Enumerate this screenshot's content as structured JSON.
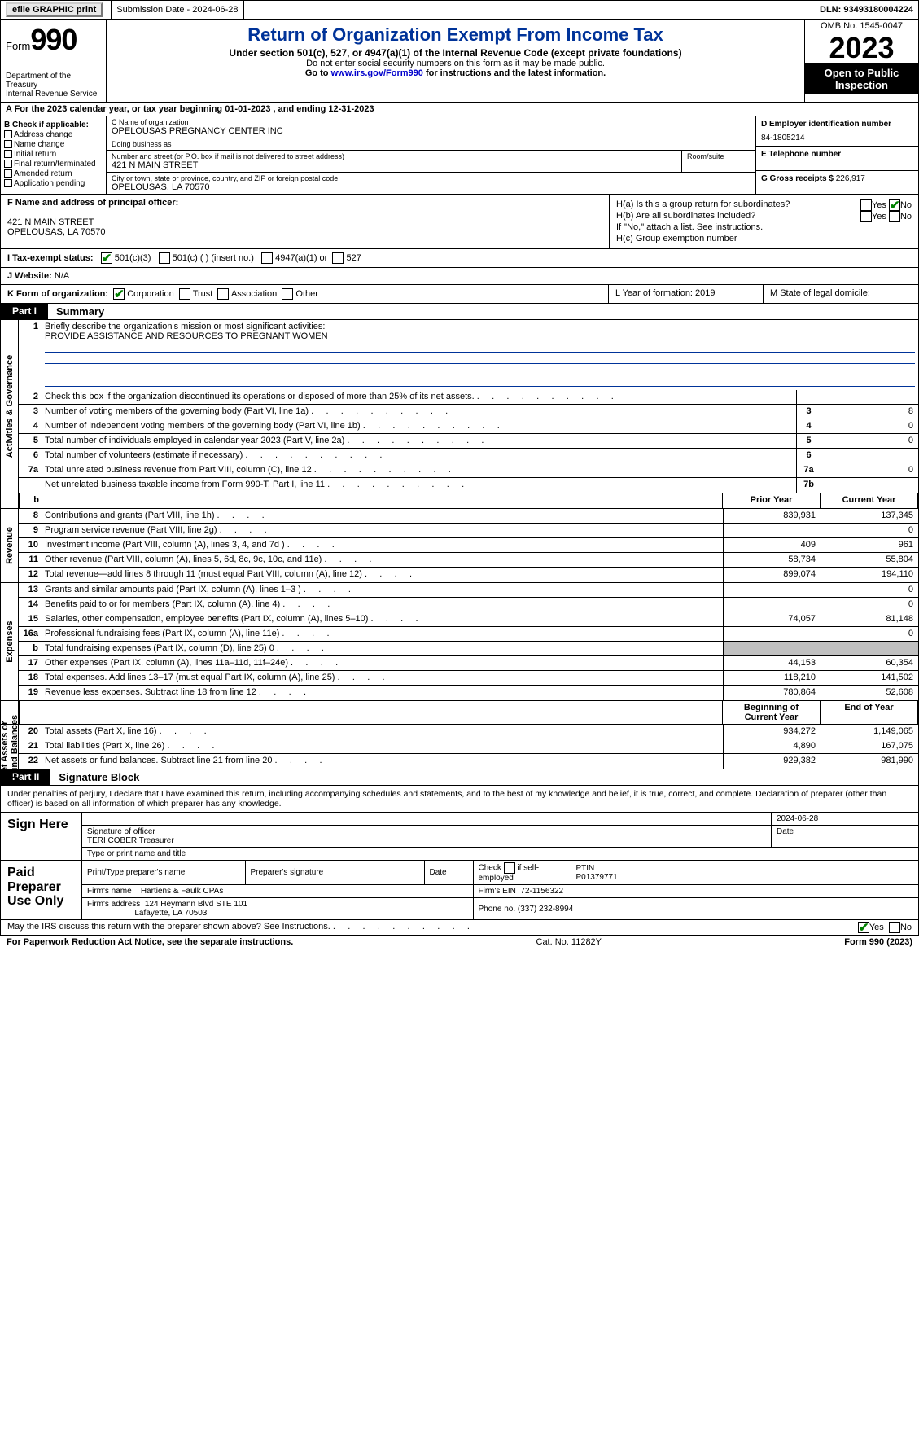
{
  "topbar": {
    "efile": "efile GRAPHIC print",
    "sub_label": "Submission Date - 2024-06-28",
    "dln": "DLN: 93493180004224"
  },
  "header": {
    "form_word": "Form",
    "form_num": "990",
    "dept": "Department of the Treasury\nInternal Revenue Service",
    "title": "Return of Organization Exempt From Income Tax",
    "sub1": "Under section 501(c), 527, or 4947(a)(1) of the Internal Revenue Code (except private foundations)",
    "sub2": "Do not enter social security numbers on this form as it may be made public.",
    "sub3_pre": "Go to ",
    "sub3_link": "www.irs.gov/Form990",
    "sub3_post": " for instructions and the latest information.",
    "omb": "OMB No. 1545-0047",
    "year": "2023",
    "open": "Open to Public Inspection"
  },
  "rowA": "A  For the 2023 calendar year, or tax year beginning 01-01-2023    , and ending 12-31-2023",
  "colB": {
    "label": "B Check if applicable:",
    "opts": [
      "Address change",
      "Name change",
      "Initial return",
      "Final return/terminated",
      "Amended return",
      "Application pending"
    ]
  },
  "colC": {
    "name_lab": "C Name of organization",
    "name": "OPELOUSAS PREGNANCY CENTER INC",
    "dba_lab": "Doing business as",
    "dba": "",
    "street_lab": "Number and street (or P.O. box if mail is not delivered to street address)",
    "street": "421 N MAIN STREET",
    "room_lab": "Room/suite",
    "city_lab": "City or town, state or province, country, and ZIP or foreign postal code",
    "city": "OPELOUSAS, LA  70570"
  },
  "colDE": {
    "d_lab": "D Employer identification number",
    "d_val": "84-1805214",
    "e_lab": "E Telephone number",
    "e_val": "",
    "g_lab": "G Gross receipts $ ",
    "g_val": "226,917"
  },
  "f": {
    "lab": "F  Name and address of principal officer:",
    "line1": "421 N MAIN STREET",
    "line2": "OPELOUSAS, LA  70570"
  },
  "h": {
    "ha": "H(a)  Is this a group return for subordinates?",
    "hb": "H(b)  Are all subordinates included?",
    "hb_note": "If \"No,\" attach a list. See instructions.",
    "hc": "H(c)  Group exemption number ",
    "yes": "Yes",
    "no": "No"
  },
  "rowI": {
    "lab": "I    Tax-exempt status:",
    "o1": "501(c)(3)",
    "o2": "501(c) (  ) (insert no.)",
    "o3": "4947(a)(1) or",
    "o4": "527"
  },
  "rowJ": {
    "lab": "J    Website: ",
    "val": "N/A"
  },
  "rowK": {
    "lab": "K Form of organization:",
    "opts": [
      "Corporation",
      "Trust",
      "Association",
      "Other"
    ],
    "L": "L Year of formation: 2019",
    "M": "M State of legal domicile: "
  },
  "partI": {
    "tag": "Part I",
    "title": "Summary"
  },
  "partII": {
    "tag": "Part II",
    "title": "Signature Block"
  },
  "sideLabels": {
    "ag": "Activities & Governance",
    "rev": "Revenue",
    "exp": "Expenses",
    "na": "Net Assets or\nFund Balances"
  },
  "s1": {
    "q": "Briefly describe the organization's mission or most significant activities:",
    "a": "PROVIDE ASSISTANCE AND RESOURCES TO PREGNANT WOMEN"
  },
  "lines_ag": [
    {
      "n": "2",
      "d": "Check this box        if the organization discontinued its operations or disposed of more than 25% of its net assets.",
      "box": "",
      "v": ""
    },
    {
      "n": "3",
      "d": "Number of voting members of the governing body (Part VI, line 1a)",
      "box": "3",
      "v": "8"
    },
    {
      "n": "4",
      "d": "Number of independent voting members of the governing body (Part VI, line 1b)",
      "box": "4",
      "v": "0"
    },
    {
      "n": "5",
      "d": "Total number of individuals employed in calendar year 2023 (Part V, line 2a)",
      "box": "5",
      "v": "0"
    },
    {
      "n": "6",
      "d": "Total number of volunteers (estimate if necessary)",
      "box": "6",
      "v": ""
    },
    {
      "n": "7a",
      "d": "Total unrelated business revenue from Part VIII, column (C), line 12",
      "box": "7a",
      "v": "0"
    },
    {
      "n": "",
      "d": "Net unrelated business taxable income from Form 990-T, Part I, line 11",
      "box": "7b",
      "v": ""
    }
  ],
  "col_hdr": {
    "b": "b",
    "py": "Prior Year",
    "cy": "Current Year"
  },
  "lines_rev": [
    {
      "n": "8",
      "d": "Contributions and grants (Part VIII, line 1h)",
      "py": "839,931",
      "cy": "137,345"
    },
    {
      "n": "9",
      "d": "Program service revenue (Part VIII, line 2g)",
      "py": "",
      "cy": "0"
    },
    {
      "n": "10",
      "d": "Investment income (Part VIII, column (A), lines 3, 4, and 7d )",
      "py": "409",
      "cy": "961"
    },
    {
      "n": "11",
      "d": "Other revenue (Part VIII, column (A), lines 5, 6d, 8c, 9c, 10c, and 11e)",
      "py": "58,734",
      "cy": "55,804"
    },
    {
      "n": "12",
      "d": "Total revenue—add lines 8 through 11 (must equal Part VIII, column (A), line 12)",
      "py": "899,074",
      "cy": "194,110"
    }
  ],
  "lines_exp": [
    {
      "n": "13",
      "d": "Grants and similar amounts paid (Part IX, column (A), lines 1–3 )",
      "py": "",
      "cy": "0"
    },
    {
      "n": "14",
      "d": "Benefits paid to or for members (Part IX, column (A), line 4)",
      "py": "",
      "cy": "0"
    },
    {
      "n": "15",
      "d": "Salaries, other compensation, employee benefits (Part IX, column (A), lines 5–10)",
      "py": "74,057",
      "cy": "81,148"
    },
    {
      "n": "16a",
      "d": "Professional fundraising fees (Part IX, column (A), line 11e)",
      "py": "",
      "cy": "0"
    },
    {
      "n": "b",
      "d": "Total fundraising expenses (Part IX, column (D), line 25) 0",
      "py": "GREY",
      "cy": "GREY"
    },
    {
      "n": "17",
      "d": "Other expenses (Part IX, column (A), lines 11a–11d, 11f–24e)",
      "py": "44,153",
      "cy": "60,354"
    },
    {
      "n": "18",
      "d": "Total expenses. Add lines 13–17 (must equal Part IX, column (A), line 25)",
      "py": "118,210",
      "cy": "141,502"
    },
    {
      "n": "19",
      "d": "Revenue less expenses. Subtract line 18 from line 12",
      "py": "780,864",
      "cy": "52,608"
    }
  ],
  "col_hdr2": {
    "py": "Beginning of Current Year",
    "cy": "End of Year"
  },
  "lines_na": [
    {
      "n": "20",
      "d": "Total assets (Part X, line 16)",
      "py": "934,272",
      "cy": "1,149,065"
    },
    {
      "n": "21",
      "d": "Total liabilities (Part X, line 26)",
      "py": "4,890",
      "cy": "167,075"
    },
    {
      "n": "22",
      "d": "Net assets or fund balances. Subtract line 21 from line 20",
      "py": "929,382",
      "cy": "981,990"
    }
  ],
  "sig": {
    "intro": "Under penalties of perjury, I declare that I have examined this return, including accompanying schedules and statements, and to the best of my knowledge and belief, it is true, correct, and complete. Declaration of preparer (other than officer) is based on all information of which preparer has any knowledge.",
    "sign_here": "Sign Here",
    "sig_of_officer": "Signature of officer",
    "officer": "TERI COBER  Treasurer",
    "type_name": "Type or print name and title",
    "date_lab": "Date",
    "date": "2024-06-28"
  },
  "prep": {
    "lab": "Paid Preparer Use Only",
    "h1": "Print/Type preparer's name",
    "h2": "Preparer's signature",
    "h3": "Date",
    "h4_pre": "Check",
    "h4_post": "if self-employed",
    "h5": "PTIN",
    "ptin": "P01379771",
    "firm_name_lab": "Firm's name",
    "firm_name": "Hartiens & Faulk CPAs",
    "firm_ein_lab": "Firm's EIN",
    "firm_ein": "72-1156322",
    "firm_addr_lab": "Firm's address",
    "firm_addr1": "124 Heymann Blvd STE 101",
    "firm_addr2": "Lafayette, LA  70503",
    "phone_lab": "Phone no.",
    "phone": "(337) 232-8994"
  },
  "discuss": {
    "q": "May the IRS discuss this return with the preparer shown above? See Instructions.",
    "yes": "Yes",
    "no": "No"
  },
  "foot": {
    "l": "For Paperwork Reduction Act Notice, see the separate instructions.",
    "m": "Cat. No. 11282Y",
    "r": "Form 990 (2023)"
  },
  "colors": {
    "title_blue": "#003399",
    "check_green": "#008000"
  }
}
